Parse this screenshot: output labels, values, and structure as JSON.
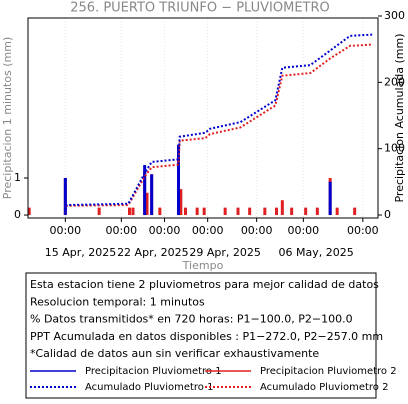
{
  "chart_data": {
    "type": "combo",
    "title": "256. PUERTO TRIUNFO − PLUVIOMETRO",
    "y_label": "Precipitacion 1 minutos (mm)",
    "y2_label": "Precipitacion Acumulada (mm)",
    "x_label": "Tiempo",
    "xlim": [
      0,
      30
    ],
    "xticks": [
      {
        "value": 3.2,
        "label": "00:00"
      },
      {
        "value": 8.0,
        "label": "00:00"
      },
      {
        "value": 11.7,
        "label": "00:00"
      },
      {
        "value": 15.4,
        "label": "00:00"
      },
      {
        "value": 19.6,
        "label": "00:00"
      },
      {
        "value": 23.6,
        "label": "00:00"
      },
      {
        "value": 28.7,
        "label": "00:00"
      }
    ],
    "xdate_labels": [
      {
        "value": 4.5,
        "label": "15 Apr, 2025"
      },
      {
        "value": 10.7,
        "label": "22 Apr, 2025"
      },
      {
        "value": 16.9,
        "label": "29 Apr, 2025"
      },
      {
        "value": 24.7,
        "label": "06 May, 2025"
      }
    ],
    "ylim": [
      -0.08,
      5.32
    ],
    "yticks": [
      0,
      1
    ],
    "y2lim": [
      -4.5,
      297
    ],
    "y2ticks": [
      0,
      100,
      200,
      300
    ],
    "grid": true,
    "series": [
      {
        "name": "Precipitacion Pluviometro 1",
        "color": "#0000cc",
        "type": "bar",
        "axis": "y",
        "x": [
          3.2,
          10.0,
          10.6,
          12.9,
          25.9
        ],
        "values": [
          1.0,
          1.35,
          1.1,
          1.9,
          0.9
        ]
      },
      {
        "name": "Precipitacion Pluviometro 2",
        "color": "#e02020",
        "type": "bar",
        "axis": "y",
        "x": [
          0.1,
          3.2,
          6.1,
          8.7,
          9.0,
          10.0,
          10.2,
          10.6,
          11.3,
          12.9,
          13.1,
          13.5,
          14.5,
          15.1,
          16.9,
          18.0,
          19.0,
          20.3,
          21.3,
          21.8,
          22.6,
          23.8,
          24.8,
          25.9,
          26.5,
          28.0
        ],
        "values": [
          0.2,
          1.0,
          0.2,
          0.2,
          0.2,
          1.2,
          0.6,
          1.1,
          0.2,
          1.8,
          0.7,
          0.2,
          0.2,
          0.2,
          0.2,
          0.2,
          0.2,
          0.2,
          0.2,
          0.4,
          0.2,
          0.2,
          0.2,
          1.0,
          0.2,
          0.2
        ]
      },
      {
        "name": "Acumulado Pluviometro 1",
        "color": "#0000cc",
        "type": "line",
        "axis": "y2",
        "x": [
          3.2,
          3.3,
          8.6,
          10.0,
          10.6,
          12.9,
          13.0,
          15.2,
          15.6,
          18.2,
          21.2,
          21.8,
          24.2,
          25.9,
          27.6,
          29.5
        ],
        "values": [
          1,
          15,
          17,
          63,
          80,
          84,
          118,
          124,
          130,
          140,
          173,
          222,
          226,
          248,
          270,
          272
        ]
      },
      {
        "name": "Acumulado Pluviometro 2",
        "color": "#e02020",
        "type": "line",
        "axis": "y2",
        "x": [
          3.2,
          3.3,
          8.6,
          10.0,
          10.6,
          12.9,
          13.0,
          15.2,
          15.6,
          18.2,
          21.2,
          21.8,
          24.2,
          25.9,
          27.6,
          29.5
        ],
        "values": [
          1,
          14,
          15,
          58,
          72,
          76,
          112,
          116,
          122,
          132,
          165,
          210,
          214,
          236,
          255,
          257
        ]
      }
    ],
    "info_lines": [
      "Esta estacion tiene 2 pluviometros para mejor calidad de datos",
      "Resolucion temporal: 1 minutos",
      "% Datos transmitidos* en 720 horas: P1−100.0, P2−100.0",
      "PPT Acumulada en datos disponibles : P1−272.0, P2−257.0 mm",
      "*Calidad de datos aun sin verificar exhaustivamente"
    ]
  }
}
